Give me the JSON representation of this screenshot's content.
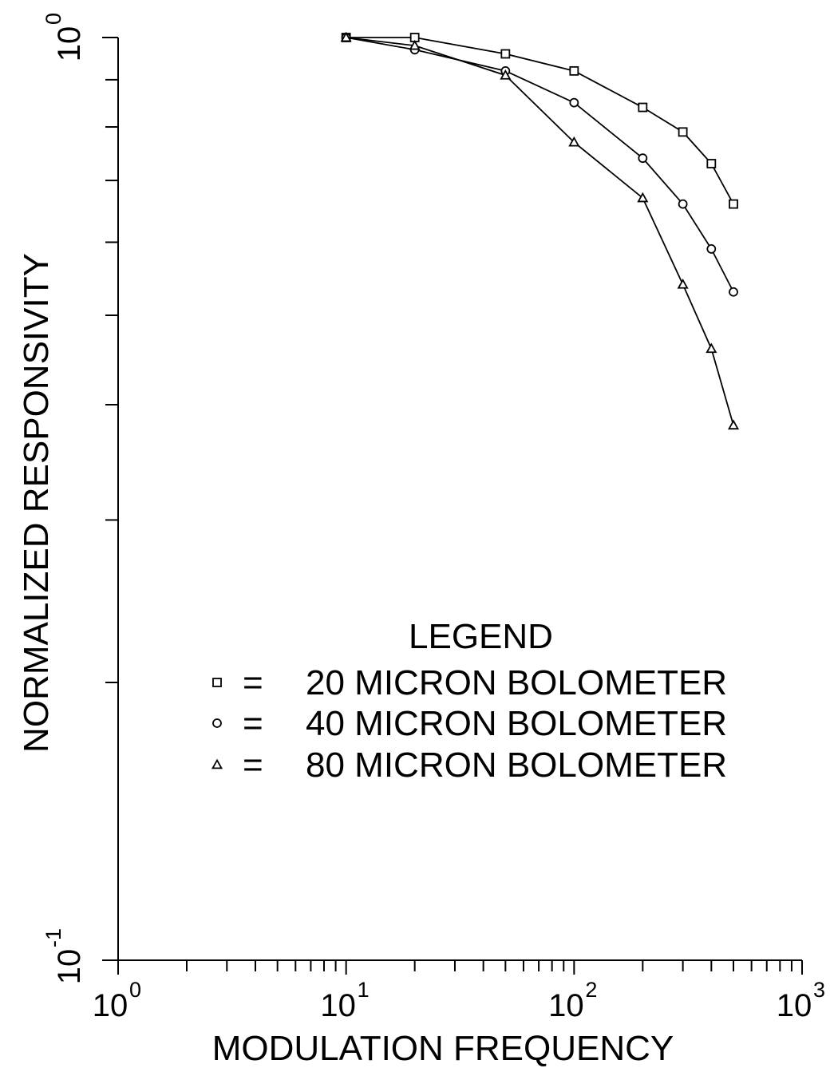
{
  "chart_data": {
    "type": "line",
    "title": "",
    "xlabel": "MODULATION FREQUENCY",
    "ylabel": "NORMALIZED RESPONSIVITY",
    "xscale": "log",
    "yscale": "log",
    "xlim": [
      1,
      1000
    ],
    "ylim": [
      0.1,
      1
    ],
    "x_ticks": [
      {
        "base": "10",
        "exp": "0"
      },
      {
        "base": "10",
        "exp": "1"
      },
      {
        "base": "10",
        "exp": "2"
      },
      {
        "base": "10",
        "exp": "3"
      }
    ],
    "y_ticks": [
      {
        "base": "10",
        "exp": "-1"
      },
      {
        "base": "10",
        "exp": "0"
      }
    ],
    "grid": false,
    "legend": {
      "title": "LEGEND",
      "placement": "lower-right",
      "equals": "="
    },
    "x": [
      10,
      20,
      50,
      100,
      200,
      300,
      400,
      500
    ],
    "series": [
      {
        "name": "20 MICRON BOLOMETER",
        "marker": "square",
        "values": [
          1.0,
          1.0,
          0.96,
          0.92,
          0.84,
          0.79,
          0.73,
          0.66
        ]
      },
      {
        "name": "40 MICRON BOLOMETER",
        "marker": "circle",
        "values": [
          1.0,
          0.97,
          0.92,
          0.85,
          0.74,
          0.66,
          0.59,
          0.53
        ]
      },
      {
        "name": "80 MICRON BOLOMETER",
        "marker": "triangle",
        "values": [
          1.0,
          0.98,
          0.91,
          0.77,
          0.67,
          0.54,
          0.46,
          0.38
        ]
      }
    ]
  }
}
